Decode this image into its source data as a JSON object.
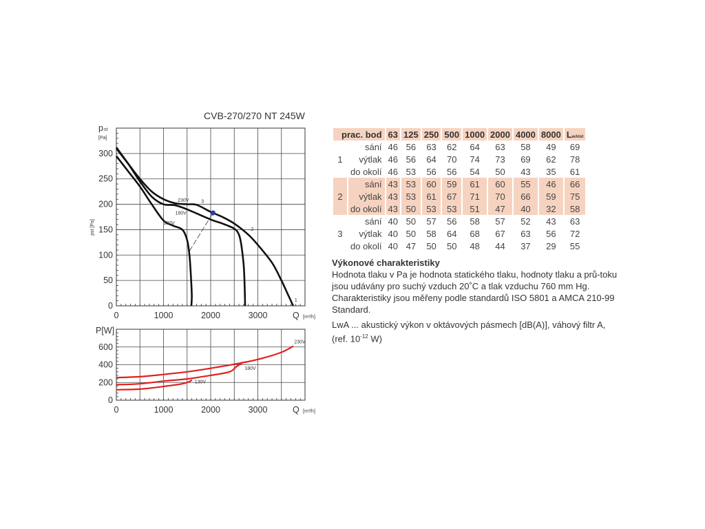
{
  "title": "CVB-270/270 NT 245W",
  "chart_data": [
    {
      "type": "line",
      "title": "CVB-270/270 NT 245W",
      "ylabel": "pst [Pa]",
      "ylabel_main": "p",
      "ylabel_sub": "st",
      "ylabel_unit": "[Pa]",
      "xlabel": "Q",
      "xlabel_unit": "[m³/h]",
      "xlim": [
        0,
        4000
      ],
      "ylim": [
        0,
        350
      ],
      "xticks": [
        0,
        1000,
        2000,
        3000
      ],
      "yticks": [
        0,
        50,
        100,
        150,
        200,
        250,
        300
      ],
      "grid": true,
      "series": [
        {
          "name": "230V",
          "x": [
            0,
            250,
            500,
            750,
            1000,
            1250,
            1500,
            1700,
            2000,
            2250,
            2500,
            2800,
            3000,
            3300,
            3500,
            3650,
            3750
          ],
          "y": [
            310,
            280,
            250,
            225,
            210,
            202,
            200,
            199,
            185,
            175,
            162,
            140,
            120,
            85,
            50,
            20,
            0
          ]
        },
        {
          "name": "180V",
          "x": [
            0,
            250,
            500,
            750,
            1000,
            1250,
            1500,
            2000,
            2250,
            2500,
            2600,
            2650,
            2700,
            2720,
            2730
          ],
          "y": [
            312,
            280,
            245,
            215,
            200,
            198,
            190,
            170,
            162,
            152,
            140,
            120,
            80,
            40,
            0
          ]
        },
        {
          "name": "130V",
          "x": [
            0,
            250,
            500,
            750,
            1000,
            1200,
            1400,
            1500,
            1550,
            1580,
            1600,
            1590
          ],
          "y": [
            295,
            265,
            235,
            200,
            168,
            158,
            150,
            130,
            100,
            60,
            20,
            0
          ]
        }
      ],
      "operating_point": {
        "x": 2050,
        "y": 183
      },
      "system_line": {
        "x": [
          1550,
          2050
        ],
        "y": [
          108,
          183
        ]
      },
      "annotations": [
        {
          "text": "230V",
          "x": 1300,
          "y": 205
        },
        {
          "text": "3",
          "x": 1800,
          "y": 203
        },
        {
          "text": "180V",
          "x": 1250,
          "y": 180
        },
        {
          "text": "130V",
          "x": 1000,
          "y": 160
        },
        {
          "text": "2",
          "x": 2850,
          "y": 148
        },
        {
          "text": "1",
          "x": 3780,
          "y": 8
        }
      ]
    },
    {
      "type": "line",
      "ylabel": "P[W]",
      "xlabel": "Q",
      "xlabel_unit": "[m³/h]",
      "xlim": [
        0,
        4000
      ],
      "ylim": [
        0,
        800
      ],
      "xticks": [
        0,
        1000,
        2000,
        3000
      ],
      "yticks": [
        0,
        200,
        400,
        600
      ],
      "grid": true,
      "series": [
        {
          "name": "230V",
          "x": [
            0,
            500,
            1000,
            1500,
            2000,
            2500,
            3000,
            3500,
            3750
          ],
          "y": [
            255,
            265,
            290,
            320,
            360,
            405,
            460,
            540,
            610
          ]
        },
        {
          "name": "180V",
          "x": [
            0,
            500,
            1000,
            1500,
            2000,
            2400,
            2550,
            2700
          ],
          "y": [
            175,
            185,
            215,
            240,
            280,
            320,
            380,
            430
          ]
        },
        {
          "name": "130V",
          "x": [
            0,
            500,
            1000,
            1400,
            1550,
            1600
          ],
          "y": [
            118,
            125,
            155,
            185,
            210,
            230
          ]
        }
      ],
      "annotations": [
        {
          "text": "230V",
          "x": 3770,
          "y": 640
        },
        {
          "text": "180V",
          "x": 2720,
          "y": 340
        },
        {
          "text": "130V",
          "x": 1660,
          "y": 190
        }
      ]
    }
  ],
  "table": {
    "header_label": "prac. bod",
    "columns": [
      "63",
      "125",
      "250",
      "500",
      "1000",
      "2000",
      "4000",
      "8000"
    ],
    "total_label": "L",
    "total_sub": "wAtot",
    "groups": [
      {
        "id": "1",
        "rows": [
          {
            "label": "sání",
            "values": [
              "46",
              "56",
              "63",
              "62",
              "64",
              "63",
              "58",
              "49",
              "69"
            ]
          },
          {
            "label": "výtlak",
            "values": [
              "46",
              "56",
              "64",
              "70",
              "74",
              "73",
              "69",
              "62",
              "78"
            ]
          },
          {
            "label": "do okolí",
            "values": [
              "46",
              "53",
              "56",
              "56",
              "54",
              "50",
              "43",
              "35",
              "61"
            ]
          }
        ]
      },
      {
        "id": "2",
        "rows": [
          {
            "label": "sání",
            "values": [
              "43",
              "53",
              "60",
              "59",
              "61",
              "60",
              "55",
              "46",
              "66"
            ]
          },
          {
            "label": "výtlak",
            "values": [
              "43",
              "53",
              "61",
              "67",
              "71",
              "70",
              "66",
              "59",
              "75"
            ]
          },
          {
            "label": "do okolí",
            "values": [
              "43",
              "50",
              "53",
              "53",
              "51",
              "47",
              "40",
              "32",
              "58"
            ]
          }
        ]
      },
      {
        "id": "3",
        "rows": [
          {
            "label": "sání",
            "values": [
              "40",
              "50",
              "57",
              "56",
              "58",
              "57",
              "52",
              "43",
              "63"
            ]
          },
          {
            "label": "výtlak",
            "values": [
              "40",
              "50",
              "58",
              "64",
              "68",
              "67",
              "63",
              "56",
              "72"
            ]
          },
          {
            "label": "do okolí",
            "values": [
              "40",
              "47",
              "50",
              "50",
              "48",
              "44",
              "37",
              "29",
              "55"
            ]
          }
        ]
      }
    ]
  },
  "notes": {
    "heading": "Výkonové charakteristiky",
    "paragraph1": "Hodnota tlaku v Pa je hodnota statického tlaku, hodnoty tlaku a prů-toku jsou udávány pro suchý vzduch 20˚C a tlak vzduchu 760 mm Hg. Charakteristiky jsou měřeny podle standardů ISO 5801 a AMCA 210-99 Standard.",
    "paragraph2_prefix": "LwA ... akustický výkon v oktávových pásmech [dB(A)], váhový filtr A, (ref. 10",
    "paragraph2_exp": "-12",
    "paragraph2_suffix": " W)"
  },
  "colors": {
    "pressure_curve": "#111111",
    "power_curve": "#e0201f",
    "operating_point": "#2a3aa8",
    "table_shade": "#f6d3c0",
    "power_axis": "#e0201f"
  }
}
